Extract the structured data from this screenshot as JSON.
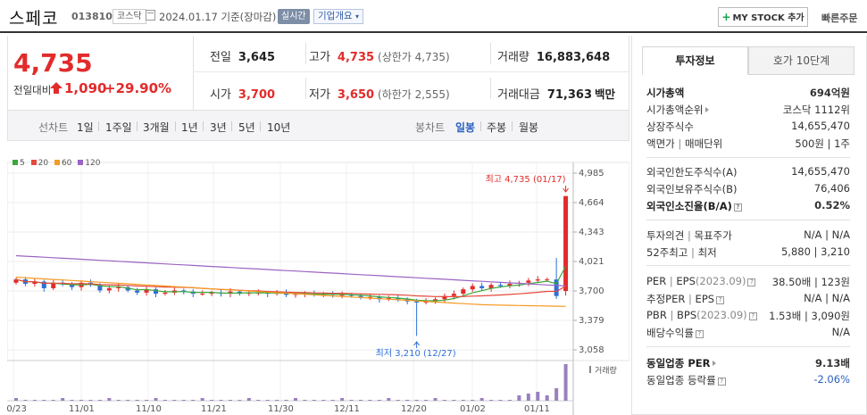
{
  "header": {
    "name": "스페코",
    "code": "013810",
    "market": "코스닥",
    "date": "2024.01.17 기준(장마감)",
    "realtime_badge": "실시간",
    "overview_label": "기업개요",
    "mystock_label": "MY STOCK 추가",
    "quick_order": "빠른주문"
  },
  "quote": {
    "price": "4,735",
    "prev_label": "전일대비",
    "change": "1,090",
    "change_pct": "+29.90%",
    "prev_close_label": "전일",
    "prev_close": "3,645",
    "high_label": "고가",
    "high": "4,735",
    "upper_limit": "(상한가 4,735)",
    "volume_label": "거래량",
    "volume": "16,883,648",
    "open_label": "시가",
    "open": "3,700",
    "low_label": "저가",
    "low": "3,650",
    "lower_limit": "(하한가 2,555)",
    "amount_label": "거래대금",
    "amount": "71,363",
    "amount_unit": "백만"
  },
  "chart_tabs": {
    "line_label": "선차트",
    "line_items": [
      "1일",
      "1주일",
      "3개월",
      "1년",
      "3년",
      "5년",
      "10년"
    ],
    "candle_label": "봉차트",
    "candle_items": [
      "일봉",
      "주봉",
      "월봉"
    ],
    "active_candle": "일봉"
  },
  "chart_data": {
    "type": "candlestick",
    "legend": [
      {
        "name": "5",
        "color": "#3aa83a"
      },
      {
        "name": "20",
        "color": "#e5483c"
      },
      {
        "name": "60",
        "color": "#f59a23"
      },
      {
        "name": "120",
        "color": "#9b63c4"
      }
    ],
    "y_ticks": [
      "4,985",
      "4,664",
      "4,343",
      "4,021",
      "3,700",
      "3,379",
      "3,058"
    ],
    "y_range": [
      3058,
      4985
    ],
    "x_ticks": [
      "10/23",
      "11/01",
      "11/10",
      "11/21",
      "11/30",
      "12/11",
      "12/20",
      "01/02",
      "01/11"
    ],
    "high_annotation": "최고 4,735 (01/17)",
    "low_annotation": "최저 3,210 (12/27)",
    "volume_label": "거래량",
    "up_color": "#e22b2b",
    "down_color": "#2f6fd6"
  },
  "side": {
    "tab_invest": "투자정보",
    "tab_orderbook": "호가 10단계",
    "market_cap_label": "시가총액",
    "market_cap": "694억원",
    "market_cap_rank_label": "시가총액순위",
    "market_cap_rank": "코스닥 1112위",
    "shares_label": "상장주식수",
    "shares": "14,655,470",
    "par_label": "액면가",
    "par_sep": "|",
    "unit_label": "매매단위",
    "par_unit": "500원 | 1주",
    "foreign_limit_label": "외국인한도주식수(A)",
    "foreign_limit": "14,655,470",
    "foreign_hold_label": "외국인보유주식수(B)",
    "foreign_hold": "76,406",
    "foreign_ratio_label": "외국인소진율(B/A)",
    "foreign_ratio": "0.52%",
    "opinion_label": "투자의견",
    "target_label": "목표주가",
    "opinion_target": "N/A | N/A",
    "w52_label": "52주최고",
    "w52_low_label": "최저",
    "w52": "5,880 | 3,210",
    "per_label": "PER",
    "eps_label": "EPS",
    "per_period": "(2023.09)",
    "per_eps": "38.50배 | 123원",
    "est_per_label": "추정PER",
    "est_eps_label": "EPS",
    "est_per_eps": "N/A | N/A",
    "pbr_label": "PBR",
    "bps_label": "BPS",
    "pbr_period": "(2023.09)",
    "pbr_bps": "1.53배 | 3,090원",
    "div_label": "배당수익률",
    "div": "N/A",
    "ind_per_label": "동일업종 PER",
    "ind_per": "9.13배",
    "ind_chg_label": "동일업종 등락률",
    "ind_chg": "-2.06%"
  }
}
